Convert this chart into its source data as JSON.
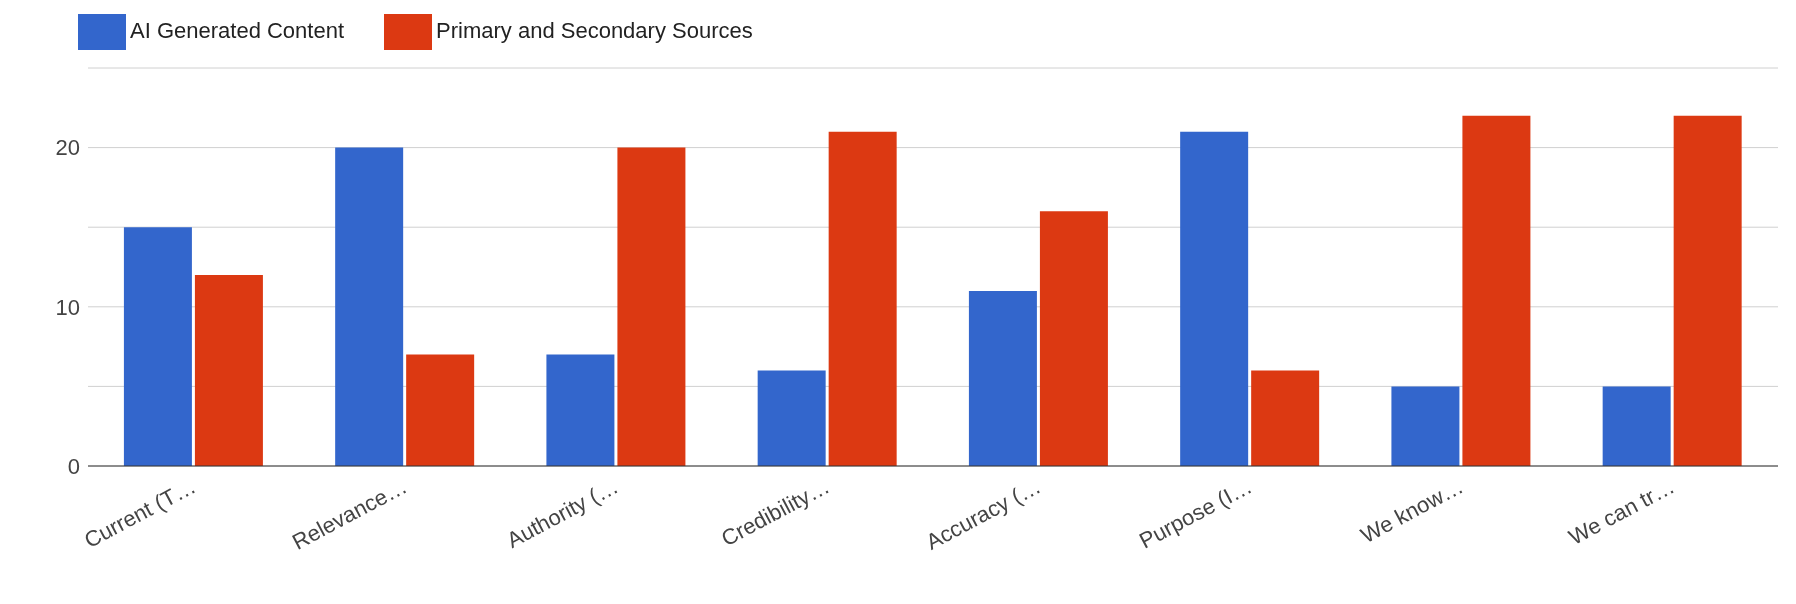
{
  "chart_data": {
    "type": "bar",
    "categories": [
      "Current (T…",
      "Relevance…",
      "Authority (…",
      "Credibility…",
      "Accuracy (…",
      "Purpose (I…",
      "We know…",
      "We can tr…"
    ],
    "series": [
      {
        "name": "AI Generated Content",
        "color": "#3366cc",
        "values": [
          15,
          20,
          7,
          6,
          11,
          21,
          5,
          5
        ]
      },
      {
        "name": "Primary and Secondary Sources",
        "color": "#dc3912",
        "values": [
          12,
          7,
          20,
          21,
          16,
          6,
          22,
          22
        ]
      }
    ],
    "ylim": [
      0,
      25
    ],
    "yticks": [
      0,
      {
        "value": 5,
        "label": null
      },
      10,
      {
        "value": 15,
        "label": null
      },
      20,
      {
        "value": 25,
        "label": null
      }
    ],
    "grid": "y",
    "legend": "top left"
  }
}
